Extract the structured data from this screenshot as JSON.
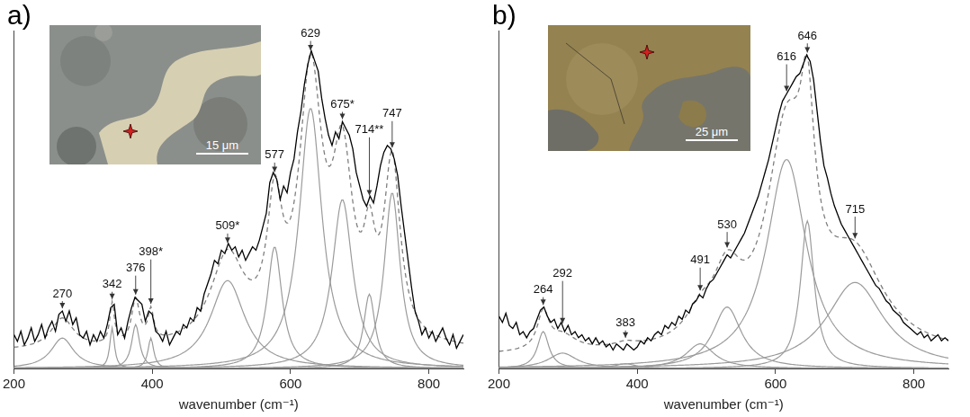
{
  "chart_data": [
    {
      "type": "line",
      "panel": "a)",
      "x_label": "wavenumber (cm⁻¹)",
      "xlim": [
        200,
        850
      ],
      "xticks": [
        200,
        400,
        600,
        800
      ],
      "ylim": [
        0,
        100
      ],
      "tick_labels": "x",
      "grid": false,
      "inset": {
        "scale_bar": "15 μm"
      },
      "spectrum": {
        "color": "#000000",
        "line_style": "solid",
        "x": [
          200,
          205,
          210,
          215,
          220,
          225,
          230,
          235,
          240,
          245,
          250,
          255,
          260,
          265,
          270,
          275,
          280,
          285,
          290,
          295,
          300,
          305,
          310,
          315,
          320,
          325,
          330,
          335,
          340,
          345,
          350,
          355,
          360,
          365,
          370,
          375,
          380,
          385,
          390,
          395,
          400,
          405,
          410,
          415,
          420,
          425,
          430,
          435,
          440,
          445,
          450,
          455,
          460,
          465,
          470,
          475,
          480,
          485,
          490,
          495,
          500,
          505,
          510,
          515,
          520,
          525,
          530,
          535,
          540,
          545,
          550,
          555,
          560,
          565,
          570,
          575,
          580,
          585,
          590,
          595,
          600,
          605,
          610,
          615,
          620,
          625,
          630,
          635,
          640,
          645,
          650,
          655,
          660,
          665,
          670,
          675,
          680,
          685,
          690,
          695,
          700,
          705,
          710,
          715,
          720,
          725,
          730,
          735,
          740,
          745,
          750,
          755,
          760,
          765,
          770,
          775,
          780,
          785,
          790,
          795,
          800,
          805,
          810,
          815,
          820,
          825,
          830,
          835,
          840,
          845,
          850
        ],
        "values": [
          10,
          8,
          11,
          7,
          9,
          12,
          8,
          10,
          13,
          9,
          12,
          14,
          11,
          16,
          17,
          14,
          17,
          13,
          15,
          10,
          9,
          11,
          7,
          10,
          8,
          11,
          9,
          13,
          18,
          19,
          10,
          12,
          9,
          14,
          18,
          21,
          20,
          19,
          14,
          17,
          16,
          11,
          10,
          8,
          11,
          7,
          9,
          11,
          10,
          13,
          12,
          15,
          14,
          18,
          17,
          22,
          25,
          28,
          32,
          31,
          35,
          34,
          37,
          35,
          36,
          33,
          35,
          32,
          34,
          36,
          35,
          38,
          42,
          46,
          55,
          58,
          56,
          50,
          54,
          52,
          58,
          62,
          70,
          76,
          84,
          90,
          94,
          91,
          88,
          80,
          74,
          69,
          66,
          70,
          68,
          73,
          71,
          69,
          65,
          58,
          54,
          50,
          48,
          51,
          49,
          54,
          60,
          64,
          66,
          65,
          62,
          57,
          48,
          40,
          32,
          24,
          17,
          14,
          10,
          12,
          9,
          11,
          8,
          10,
          12,
          9,
          7,
          10,
          6,
          8,
          10
        ]
      },
      "fit": {
        "color": "#7f7f7f",
        "line_style": "dashed",
        "baseline": 5
      },
      "components": {
        "color": "#9b9b9b",
        "line_style": "solid",
        "peaks": [
          {
            "center": 270,
            "height": 9,
            "width": 40
          },
          {
            "center": 342,
            "height": 12,
            "width": 8
          },
          {
            "center": 376,
            "height": 13,
            "width": 14
          },
          {
            "center": 398,
            "label": "398*",
            "height": 9,
            "width": 10
          },
          {
            "center": 509,
            "label": "509*",
            "height": 26,
            "width": 60
          },
          {
            "center": 577,
            "height": 36,
            "width": 26
          },
          {
            "center": 629,
            "height": 77,
            "width": 40
          },
          {
            "center": 675,
            "label": "675*",
            "height": 50,
            "width": 36
          },
          {
            "center": 714,
            "label": "714**",
            "height": 22,
            "width": 20
          },
          {
            "center": 747,
            "height": 52,
            "width": 28
          }
        ]
      }
    },
    {
      "type": "line",
      "panel": "b)",
      "x_label": "wavenumber (cm⁻¹)",
      "xlim": [
        200,
        850
      ],
      "xticks": [
        200,
        400,
        600,
        800
      ],
      "ylim": [
        0,
        110
      ],
      "tick_labels": "x",
      "grid": false,
      "inset": {
        "scale_bar": "25 μm"
      },
      "spectrum": {
        "color": "#000000",
        "line_style": "solid",
        "x": [
          200,
          205,
          210,
          215,
          220,
          225,
          230,
          235,
          240,
          245,
          250,
          255,
          260,
          265,
          270,
          275,
          280,
          285,
          290,
          295,
          300,
          305,
          310,
          315,
          320,
          325,
          330,
          335,
          340,
          345,
          350,
          355,
          360,
          365,
          370,
          375,
          380,
          385,
          390,
          395,
          400,
          405,
          410,
          415,
          420,
          425,
          430,
          435,
          440,
          445,
          450,
          455,
          460,
          465,
          470,
          475,
          480,
          485,
          490,
          495,
          500,
          505,
          510,
          515,
          520,
          525,
          530,
          535,
          540,
          545,
          550,
          555,
          560,
          565,
          570,
          575,
          580,
          585,
          590,
          595,
          600,
          605,
          610,
          615,
          620,
          625,
          630,
          635,
          640,
          645,
          650,
          655,
          660,
          665,
          670,
          675,
          680,
          685,
          690,
          695,
          700,
          705,
          710,
          715,
          720,
          725,
          730,
          735,
          740,
          745,
          750,
          755,
          760,
          765,
          770,
          775,
          780,
          785,
          790,
          795,
          800,
          805,
          810,
          815,
          820,
          825,
          830,
          835,
          840,
          845,
          850
        ],
        "values": [
          17,
          15,
          18,
          14,
          13,
          15,
          11,
          12,
          10,
          12,
          13,
          16,
          19,
          20,
          17,
          15,
          16,
          13,
          15,
          12,
          14,
          11,
          12,
          10,
          11,
          9,
          10,
          8,
          10,
          8,
          9,
          7,
          8,
          6,
          8,
          7,
          6,
          8,
          7,
          6,
          7,
          9,
          8,
          10,
          9,
          11,
          12,
          11,
          14,
          13,
          15,
          14,
          17,
          16,
          19,
          18,
          21,
          22,
          24,
          23,
          26,
          28,
          29,
          31,
          33,
          35,
          37,
          36,
          38,
          40,
          42,
          44,
          47,
          50,
          53,
          56,
          60,
          64,
          68,
          73,
          78,
          83,
          87,
          89,
          91,
          93,
          95,
          96,
          99,
          102,
          100,
          94,
          84,
          74,
          66,
          62,
          57,
          53,
          50,
          47,
          45,
          43,
          41,
          39,
          37,
          35,
          33,
          31,
          29,
          27,
          26,
          24,
          22,
          21,
          19,
          18,
          17,
          15,
          14,
          13,
          12,
          11,
          12,
          10,
          11,
          9,
          10,
          11,
          9,
          10,
          9
        ]
      },
      "fit": {
        "color": "#7f7f7f",
        "line_style": "dashed",
        "baseline": 4
      },
      "components": {
        "color": "#9b9b9b",
        "line_style": "solid",
        "peaks": [
          {
            "center": 264,
            "height": 12,
            "width": 20
          },
          {
            "center": 292,
            "height": 5,
            "width": 50
          },
          {
            "center": 383,
            "height": 1.5,
            "width": 40
          },
          {
            "center": 491,
            "height": 8,
            "width": 50
          },
          {
            "center": 530,
            "height": 20,
            "width": 50
          },
          {
            "center": 616,
            "height": 68,
            "width": 70
          },
          {
            "center": 646,
            "height": 48,
            "width": 24
          },
          {
            "center": 715,
            "height": 28,
            "width": 100
          }
        ]
      }
    }
  ]
}
